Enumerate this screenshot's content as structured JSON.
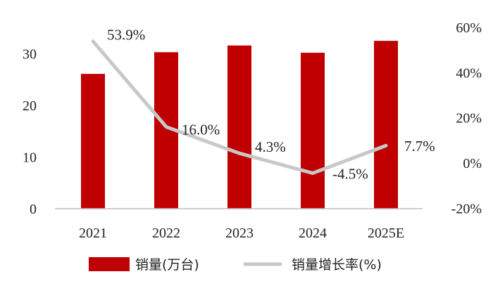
{
  "chart_data": {
    "type": "bar+line",
    "categories": [
      "2021",
      "2022",
      "2023",
      "2024",
      "2025E"
    ],
    "series": [
      {
        "name": "销量(万台)",
        "type": "bar",
        "axis": "left",
        "color": "#c00000",
        "values": [
          26.1,
          30.3,
          31.6,
          30.2,
          32.5
        ]
      },
      {
        "name": "销量增长率(%)",
        "type": "line",
        "axis": "right",
        "color": "#c8c8c8",
        "values": [
          53.9,
          16.0,
          4.3,
          -4.5,
          7.7
        ],
        "labels": [
          "53.9%",
          "16.0%",
          "4.3%",
          "-4.5%",
          "7.7%"
        ]
      }
    ],
    "y_left": {
      "ylim": [
        0,
        35
      ],
      "ticks": [
        "0",
        "10",
        "20",
        "30"
      ]
    },
    "y_right": {
      "ylim": [
        -20,
        60
      ],
      "ticks": [
        "-20%",
        "0%",
        "20%",
        "40%",
        "60%"
      ]
    },
    "title": "",
    "xlabel": "",
    "ylabel": "",
    "grid": false,
    "legend": "bottom"
  }
}
